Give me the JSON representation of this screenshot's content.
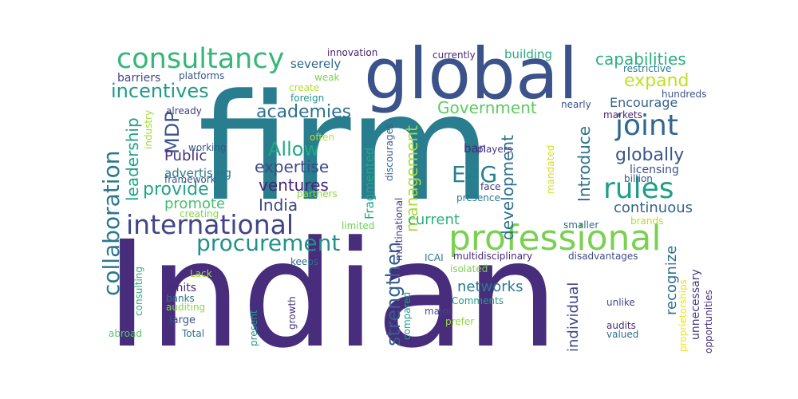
{
  "words": [
    {
      "key": "indian",
      "text": "Indian",
      "color": "#472d7b",
      "rotated": false
    },
    {
      "key": "firm",
      "text": "firm",
      "color": "#287d8e",
      "rotated": false
    },
    {
      "key": "global",
      "text": "global",
      "color": "#3b528b",
      "rotated": false
    },
    {
      "key": "professional",
      "text": "professional",
      "color": "#7ad151",
      "rotated": false
    },
    {
      "key": "international",
      "text": "international",
      "color": "#414487",
      "rotated": false
    },
    {
      "key": "consultancy",
      "text": "consultancy",
      "color": "#35b779",
      "rotated": false
    },
    {
      "key": "procurement",
      "text": "procurement",
      "color": "#21918c",
      "rotated": false
    },
    {
      "key": "collaboration",
      "text": "collaboration",
      "color": "#2a788e",
      "rotated": true
    },
    {
      "key": "rules",
      "text": "rules",
      "color": "#1f9e89",
      "rotated": false
    },
    {
      "key": "joint",
      "text": "joint",
      "color": "#31688e",
      "rotated": false
    },
    {
      "key": "incentives",
      "text": "incentives",
      "color": "#1f9a8a",
      "rotated": false
    },
    {
      "key": "allow",
      "text": "Allow",
      "color": "#22a884",
      "rotated": false
    },
    {
      "key": "strengthen",
      "text": "strengthen",
      "color": "#355f8d",
      "rotated": true
    },
    {
      "key": "management",
      "text": "management",
      "color": "#a5db36",
      "rotated": true
    },
    {
      "key": "academies",
      "text": "academies",
      "color": "#2c728e",
      "rotated": false
    },
    {
      "key": "capabilities",
      "text": "capabilities",
      "color": "#29af7f",
      "rotated": false
    },
    {
      "key": "expand",
      "text": "expand",
      "color": "#c2df23",
      "rotated": false
    },
    {
      "key": "government",
      "text": "Government",
      "color": "#5ec962",
      "rotated": false
    },
    {
      "key": "globally",
      "text": "globally",
      "color": "#39568c",
      "rotated": false
    },
    {
      "key": "provide",
      "text": "provide",
      "color": "#21a685",
      "rotated": false
    },
    {
      "key": "expertise",
      "text": "expertise",
      "color": "#3e4989",
      "rotated": false
    },
    {
      "key": "esg",
      "text": "ESG",
      "color": "#26828e",
      "rotated": false
    },
    {
      "key": "mdp",
      "text": "MDP",
      "color": "#3b528b",
      "rotated": true
    },
    {
      "key": "leadership",
      "text": "leadership",
      "color": "#1fa188",
      "rotated": true
    },
    {
      "key": "ventures",
      "text": "ventures",
      "color": "#482475",
      "rotated": false
    },
    {
      "key": "india",
      "text": "India",
      "color": "#3f4788",
      "rotated": false
    },
    {
      "key": "development",
      "text": "development",
      "color": "#2d708e",
      "rotated": true
    },
    {
      "key": "introduce",
      "text": "Introduce",
      "color": "#2c728e",
      "rotated": true
    },
    {
      "key": "encourage",
      "text": "Encourage",
      "color": "#33638d",
      "rotated": false
    },
    {
      "key": "current",
      "text": "current",
      "color": "#2db27d",
      "rotated": false
    },
    {
      "key": "continuous",
      "text": "continuous",
      "color": "#33638d",
      "rotated": false
    },
    {
      "key": "promote",
      "text": "promote",
      "color": "#44bf70",
      "rotated": false
    },
    {
      "key": "public",
      "text": "Public",
      "color": "#46327e",
      "rotated": false
    },
    {
      "key": "networks",
      "text": "networks",
      "color": "#2a788e",
      "rotated": false
    },
    {
      "key": "individual",
      "text": "individual",
      "color": "#414487",
      "rotated": true
    },
    {
      "key": "recognize",
      "text": "recognize",
      "color": "#2d708e",
      "rotated": true
    },
    {
      "key": "advertising",
      "text": "advertising",
      "color": "#2a788e",
      "rotated": false
    },
    {
      "key": "fragmented",
      "text": "Fragmented",
      "color": "#21a685",
      "rotated": true
    },
    {
      "key": "severely",
      "text": "severely",
      "color": "#30688e",
      "rotated": false
    },
    {
      "key": "building",
      "text": "building",
      "color": "#25ab82",
      "rotated": false
    },
    {
      "key": "barriers",
      "text": "barriers",
      "color": "#404688",
      "rotated": false
    },
    {
      "key": "licensing",
      "text": "licensing",
      "color": "#3b528b",
      "rotated": false
    },
    {
      "key": "ban",
      "text": "ban",
      "color": "#472c7a",
      "rotated": false
    },
    {
      "key": "unnecessary",
      "text": "unnecessary",
      "color": "#443a83",
      "rotated": true
    },
    {
      "key": "opportunities",
      "text": "opportunities",
      "color": "#472f7d",
      "rotated": true
    },
    {
      "key": "limits",
      "text": "limits",
      "color": "#482979",
      "rotated": false
    },
    {
      "key": "large",
      "text": "large",
      "color": "#3d4e8a",
      "rotated": false
    },
    {
      "key": "multidisciplinary",
      "text": "multidisciplinary",
      "color": "#482878",
      "rotated": false
    },
    {
      "key": "disadvantages",
      "text": "disadvantages",
      "color": "#3e4c8a",
      "rotated": false
    },
    {
      "key": "create",
      "text": "create",
      "color": "#b5de2b",
      "rotated": false
    },
    {
      "key": "weak",
      "text": "weak",
      "color": "#7ad151",
      "rotated": false
    },
    {
      "key": "innovation",
      "text": "innovation",
      "color": "#482173",
      "rotated": false
    },
    {
      "key": "currently",
      "text": "currently",
      "color": "#472a7a",
      "rotated": false
    },
    {
      "key": "platforms",
      "text": "platforms",
      "color": "#3a548c",
      "rotated": false
    },
    {
      "key": "restrictive",
      "text": "restrictive",
      "color": "#2a778e",
      "rotated": false
    },
    {
      "key": "hundreds",
      "text": "hundreds",
      "color": "#3b528b",
      "rotated": false
    },
    {
      "key": "already",
      "text": "already",
      "color": "#433d84",
      "rotated": false
    },
    {
      "key": "nearly",
      "text": "nearly",
      "color": "#3b528b",
      "rotated": false
    },
    {
      "key": "markets",
      "text": "markets",
      "color": "#482475",
      "rotated": false
    },
    {
      "key": "industry",
      "text": "industry",
      "color": "#a0da39",
      "rotated": true
    },
    {
      "key": "foreign",
      "text": "foreign",
      "color": "#1f968b",
      "rotated": false
    },
    {
      "key": "working",
      "text": "working",
      "color": "#39568c",
      "rotated": false
    },
    {
      "key": "framework",
      "text": "framework",
      "color": "#3b528b",
      "rotated": false
    },
    {
      "key": "often",
      "text": "often",
      "color": "#b5de2b",
      "rotated": false
    },
    {
      "key": "discourages",
      "text": "discourages",
      "color": "#34618d",
      "rotated": true
    },
    {
      "key": "players",
      "text": "players",
      "color": "#453781",
      "rotated": false
    },
    {
      "key": "partners",
      "text": "partners",
      "color": "#8bd646",
      "rotated": false
    },
    {
      "key": "presence",
      "text": "presence",
      "color": "#2a788e",
      "rotated": false
    },
    {
      "key": "face",
      "text": "face",
      "color": "#443983",
      "rotated": false
    },
    {
      "key": "billion",
      "text": "billion",
      "color": "#3b528b",
      "rotated": false
    },
    {
      "key": "mandated",
      "text": "mandated",
      "color": "#d2e21b",
      "rotated": true
    },
    {
      "key": "multinational",
      "text": "multinational",
      "color": "#443a83",
      "rotated": true
    },
    {
      "key": "brands",
      "text": "brands",
      "color": "#b5de2b",
      "rotated": false
    },
    {
      "key": "smaller",
      "text": "smaller",
      "color": "#31688e",
      "rotated": false
    },
    {
      "key": "creating",
      "text": "creating",
      "color": "#86d549",
      "rotated": false
    },
    {
      "key": "limited",
      "text": "limited",
      "color": "#6ece58",
      "rotated": false
    },
    {
      "key": "keeps",
      "text": "keeps",
      "color": "#2f6c8e",
      "rotated": false
    },
    {
      "key": "icai",
      "text": "ICAI",
      "color": "#2a788e",
      "rotated": false
    },
    {
      "key": "isolated",
      "text": "isolated",
      "color": "#7ad151",
      "rotated": false
    },
    {
      "key": "lack",
      "text": "Lack",
      "color": "#a2da37",
      "rotated": false
    },
    {
      "key": "consulting",
      "text": "consulting",
      "color": "#2db27d",
      "rotated": true
    },
    {
      "key": "banks",
      "text": "banks",
      "color": "#2c728e",
      "rotated": false
    },
    {
      "key": "auditing",
      "text": "auditing",
      "color": "#8bd646",
      "rotated": false
    },
    {
      "key": "comments",
      "text": "Comments",
      "color": "#1fa088",
      "rotated": false
    },
    {
      "key": "major",
      "text": "major",
      "color": "#3f4788",
      "rotated": false
    },
    {
      "key": "prefer",
      "text": "prefer",
      "color": "#95d840",
      "rotated": false
    },
    {
      "key": "proprietorships",
      "text": "proprietorships",
      "color": "#e7e419",
      "rotated": true
    },
    {
      "key": "unlike",
      "text": "unlike",
      "color": "#404688",
      "rotated": false
    },
    {
      "key": "audits",
      "text": "audits",
      "color": "#472d7b",
      "rotated": false
    },
    {
      "key": "valued",
      "text": "valued",
      "color": "#2e6e8e",
      "rotated": false
    },
    {
      "key": "present",
      "text": "present",
      "color": "#1f968b",
      "rotated": true
    },
    {
      "key": "growth",
      "text": "growth",
      "color": "#46307e",
      "rotated": true
    },
    {
      "key": "compared",
      "text": "compared",
      "color": "#1fa088",
      "rotated": true
    },
    {
      "key": "abroad",
      "text": "abroad",
      "color": "#56c667",
      "rotated": false
    },
    {
      "key": "total",
      "text": "Total",
      "color": "#2c728e",
      "rotated": false
    }
  ]
}
